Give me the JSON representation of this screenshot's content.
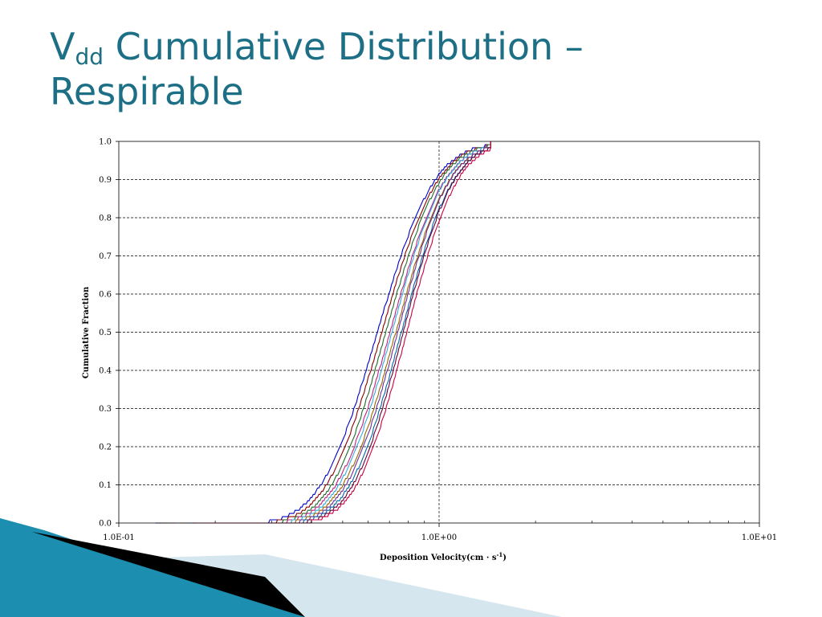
{
  "slide": {
    "title_main": "V",
    "title_sub": "dd",
    "title_rest": " Cumulative Distribution – Respirable"
  },
  "chart_data": {
    "type": "line",
    "xscale": "log",
    "xlim": [
      0.1,
      10
    ],
    "ylim": [
      0,
      1
    ],
    "x_ticks": [
      "1.0E-01",
      "1.0E+00",
      "1.0E+01"
    ],
    "y_ticks": [
      "0.0",
      "0.1",
      "0.2",
      "0.3",
      "0.4",
      "0.5",
      "0.6",
      "0.7",
      "0.8",
      "0.9",
      "1.0"
    ],
    "xlabel": "Deposition Velocity(cm · s-1)",
    "xlabel_parts": {
      "before": "Deposition Velocity(cm · s",
      "sup": "-1",
      "after": ")"
    },
    "ylabel": "Cumulative Fraction",
    "grid": "dashed-horizontal",
    "legend": "none",
    "series": [
      {
        "color": "#0000cc",
        "median": 0.64,
        "sigma": 1.38,
        "start": 0.13
      },
      {
        "color": "#8b0000",
        "median": 0.66,
        "sigma": 1.37,
        "start": 0.135
      },
      {
        "color": "#1f6b2a",
        "median": 0.68,
        "sigma": 1.36,
        "start": 0.14
      },
      {
        "color": "#c02080",
        "median": 0.7,
        "sigma": 1.36,
        "start": 0.145
      },
      {
        "color": "#33aadd",
        "median": 0.71,
        "sigma": 1.35,
        "start": 0.15
      },
      {
        "color": "#996600",
        "median": 0.73,
        "sigma": 1.35,
        "start": 0.155
      },
      {
        "color": "#6a2e9a",
        "median": 0.74,
        "sigma": 1.34,
        "start": 0.16
      },
      {
        "color": "#0066aa",
        "median": 0.76,
        "sigma": 1.34,
        "start": 0.165
      },
      {
        "color": "#660033",
        "median": 0.77,
        "sigma": 1.33,
        "start": 0.17
      },
      {
        "color": "#cc0044",
        "median": 0.79,
        "sigma": 1.33,
        "start": 0.175
      }
    ]
  }
}
